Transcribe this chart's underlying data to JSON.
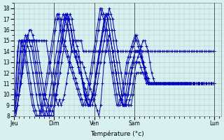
{
  "title": "",
  "xlabel": "Température (°c)",
  "ylabel": "",
  "background_color": "#d8f0f0",
  "grid_color": "#b0d0d0",
  "line_color": "#0000cc",
  "ylim": [
    8,
    18.5
  ],
  "yticks": [
    8,
    9,
    10,
    11,
    12,
    13,
    14,
    15,
    16,
    17,
    18
  ],
  "day_labels": [
    "Jeu",
    "Dim",
    "Ven",
    "Sam",
    "Lun"
  ],
  "day_positions": [
    0,
    24,
    48,
    72,
    120
  ],
  "series": [
    [
      8,
      8,
      9,
      10,
      11,
      12,
      13,
      14,
      15,
      16,
      16,
      15.5,
      15,
      15,
      15,
      15,
      15,
      15,
      15,
      15,
      14,
      13,
      12,
      11,
      10,
      9.5,
      9,
      9.5,
      9,
      9.5,
      10,
      11,
      12,
      13,
      14,
      15,
      15,
      15,
      15,
      15,
      15,
      14,
      14,
      14,
      14,
      14,
      14,
      14,
      14,
      14,
      14,
      14,
      14,
      14,
      14,
      14,
      14,
      14,
      14,
      14,
      14,
      14,
      14,
      14,
      14,
      14,
      14,
      14,
      14,
      14,
      14,
      14,
      14,
      14,
      14,
      14,
      14,
      14,
      14,
      14,
      14,
      14,
      14,
      14,
      14,
      14,
      14,
      14,
      14,
      14,
      14,
      14,
      14,
      14,
      14,
      14,
      14,
      14,
      14,
      14,
      14,
      14,
      14,
      14,
      14,
      14,
      14,
      14,
      14,
      14,
      14,
      14,
      14,
      14,
      14,
      14,
      14,
      14,
      14,
      14
    ],
    [
      8,
      8,
      9,
      10,
      11,
      13,
      14,
      15,
      15,
      15,
      15,
      15,
      15,
      15,
      14,
      13,
      12,
      11,
      10,
      9.5,
      9,
      8,
      8,
      8,
      9,
      10,
      11,
      12,
      13,
      14,
      15,
      16,
      17,
      17.5,
      17,
      16,
      15,
      14.5,
      14,
      13,
      13,
      12.5,
      12,
      11.5,
      11,
      10.5,
      10,
      9.5,
      9,
      8.5,
      8,
      9,
      11,
      13,
      14,
      15,
      15.5,
      15,
      14,
      13,
      12,
      11,
      10,
      9.5,
      9,
      9,
      9,
      9,
      9,
      9,
      10,
      11,
      12,
      12,
      12,
      12,
      12,
      11.5,
      11,
      11,
      11,
      11,
      11,
      11,
      11,
      11,
      11,
      11,
      11,
      11,
      11,
      11,
      11,
      11,
      11,
      11,
      11,
      11,
      11,
      11,
      11,
      11,
      11,
      11,
      11,
      11,
      11,
      11,
      11,
      11,
      11,
      11,
      11,
      11,
      11,
      11,
      11,
      11,
      11
    ],
    [
      8,
      8,
      9,
      10,
      11,
      12,
      14,
      15,
      15.5,
      15,
      15,
      15,
      15,
      14,
      13,
      12,
      11,
      10,
      9.5,
      9,
      8,
      8,
      8,
      8.5,
      9,
      10,
      11,
      13,
      14,
      15,
      16,
      17,
      17.5,
      17,
      16,
      15,
      14,
      14,
      13,
      12,
      12,
      11,
      10,
      9.5,
      9,
      9,
      9.5,
      10,
      11,
      12,
      13,
      14,
      15,
      16,
      17,
      17.5,
      17,
      16,
      15,
      14,
      13,
      12,
      11,
      10,
      9.5,
      9,
      9,
      9,
      10,
      11,
      12,
      12.5,
      13,
      13,
      13,
      13,
      12.5,
      12,
      12,
      11.5,
      11,
      11,
      11,
      11,
      11,
      11,
      11,
      11,
      11,
      11,
      11,
      11,
      11,
      11,
      11,
      11,
      11,
      11,
      11,
      11,
      11,
      11,
      11,
      11,
      11,
      11,
      11,
      11,
      11,
      11,
      11,
      11,
      11,
      11,
      11,
      11,
      11,
      11,
      11,
      11,
      11
    ],
    [
      8,
      8.5,
      9,
      10,
      12,
      14,
      15,
      15.5,
      15,
      15,
      15,
      15,
      14,
      13,
      12,
      11,
      10,
      9,
      8.5,
      8,
      8,
      8,
      8.5,
      9,
      10,
      11,
      12,
      13,
      14,
      15,
      16,
      17,
      17.5,
      17,
      16.5,
      16,
      15,
      14,
      14,
      13.5,
      13,
      12,
      11,
      10,
      9.5,
      9,
      9,
      9.5,
      10,
      11,
      12,
      13,
      14,
      15,
      16,
      17,
      17.5,
      17,
      16,
      15,
      14,
      13,
      12,
      11,
      10,
      9.5,
      9,
      9,
      10,
      11,
      12,
      12.5,
      13,
      13.5,
      14,
      14,
      14,
      13.5,
      13,
      12.5,
      12,
      11.5,
      11,
      11,
      11,
      11,
      11,
      11,
      11,
      11,
      11,
      11,
      11,
      11,
      11,
      11,
      11,
      11,
      11,
      11,
      11,
      11,
      11,
      11,
      11,
      11,
      11,
      11,
      11,
      11,
      11,
      11,
      11,
      11,
      11,
      11,
      11,
      11,
      11,
      11,
      11,
      11,
      11
    ],
    [
      8,
      9,
      10,
      12,
      14,
      15,
      15,
      15,
      15,
      15,
      14.5,
      14,
      13,
      12,
      11,
      10,
      9,
      8.5,
      8,
      8,
      8,
      8.5,
      9,
      10,
      11,
      12,
      13,
      14,
      15,
      16,
      17,
      17.5,
      17,
      16,
      15,
      14,
      14,
      13.5,
      13,
      12.5,
      12,
      11.5,
      11,
      10,
      9.5,
      9,
      9,
      9.5,
      10,
      11,
      12,
      13,
      14,
      15,
      16,
      17,
      17.5,
      17.5,
      17,
      16,
      15,
      14,
      13,
      12,
      11,
      10,
      9,
      9,
      9.5,
      10,
      11,
      12,
      13,
      14,
      14,
      14,
      14,
      13.5,
      13,
      12.5,
      12,
      11.5,
      11,
      11,
      11,
      11,
      11,
      11,
      11,
      11,
      11,
      11,
      11,
      11,
      11,
      11,
      11,
      11,
      11,
      11,
      11,
      11,
      11,
      11,
      11,
      11,
      11,
      11,
      11,
      11,
      11,
      11,
      11,
      11,
      11,
      11,
      11,
      11,
      11,
      11,
      11,
      11
    ],
    [
      8,
      9,
      11,
      13,
      15,
      15,
      15,
      15,
      14.5,
      14,
      13,
      12,
      11,
      10,
      9,
      8.5,
      8,
      8,
      8,
      8.5,
      9,
      10,
      11,
      12,
      13,
      14,
      15,
      16,
      17,
      17.5,
      17,
      16.5,
      16,
      15,
      14,
      14,
      13.5,
      13,
      12.5,
      12,
      11.5,
      11,
      10.5,
      10,
      9.5,
      9,
      9,
      9.5,
      10,
      11,
      12,
      13,
      14,
      15,
      16,
      17,
      18,
      17.5,
      17,
      16,
      15,
      14,
      13,
      12,
      11,
      10,
      9,
      9,
      9.5,
      10,
      11,
      12,
      13,
      13.5,
      14,
      14.5,
      15,
      15,
      14.5,
      14,
      13,
      12,
      11.5,
      11,
      11,
      11,
      11,
      11,
      11,
      11,
      11,
      11,
      11,
      11,
      11,
      11,
      11,
      11,
      11,
      11,
      11,
      11,
      11,
      11,
      11,
      11,
      11,
      11,
      11,
      11,
      11,
      11,
      11,
      11,
      11,
      11,
      11,
      11,
      11
    ],
    [
      8,
      10,
      13,
      15,
      15,
      15,
      14.5,
      14,
      13,
      12,
      11,
      10,
      9,
      8.5,
      8,
      8,
      8,
      8.5,
      9,
      10,
      11,
      12,
      13,
      14,
      15,
      16,
      17,
      17.5,
      17,
      16,
      15,
      14.5,
      14,
      13.5,
      13,
      12.5,
      12,
      11.5,
      11,
      10.5,
      10,
      9.5,
      9,
      9,
      9.5,
      10,
      11,
      12,
      13,
      14,
      15,
      16,
      17,
      18,
      17.5,
      17,
      16,
      15,
      14,
      13,
      12,
      11,
      10,
      9,
      9,
      9.5,
      10,
      11,
      12,
      13,
      13.5,
      14,
      14.5,
      15,
      15.5,
      15,
      14.5,
      14,
      13,
      12,
      11.5,
      11,
      11,
      11,
      11,
      11,
      11,
      11,
      11,
      11,
      11,
      11,
      11,
      11,
      11,
      11,
      11,
      11,
      11,
      11,
      11,
      11,
      11,
      11,
      11,
      11,
      11,
      11,
      11,
      11,
      11,
      11,
      11,
      11,
      11,
      11,
      11,
      11,
      11,
      11,
      11,
      11
    ],
    [
      8,
      11,
      14,
      15,
      15,
      14.5,
      14,
      13,
      12,
      11,
      10,
      9,
      8.5,
      8,
      8,
      8,
      8.5,
      9,
      10,
      11,
      12,
      13,
      14,
      15,
      16,
      17,
      17.5,
      17,
      16,
      15,
      14.5,
      14,
      13.5,
      13,
      12.5,
      12,
      11.5,
      11,
      10.5,
      10,
      9.5,
      9,
      9,
      9.5,
      10,
      11,
      12,
      13,
      14,
      15,
      16,
      17,
      18,
      17.5,
      17,
      16,
      15,
      14,
      13,
      12,
      11,
      10,
      9,
      9,
      9.5,
      10,
      11,
      12,
      13,
      13.5,
      14,
      14.5,
      15,
      15.5,
      15,
      14.5,
      14,
      13.5,
      13,
      12,
      11.5,
      11,
      11,
      11,
      11,
      11,
      11,
      11,
      11,
      11,
      11,
      11,
      11,
      11,
      11,
      11,
      11,
      11,
      11,
      11,
      11,
      11,
      11,
      11,
      11,
      11,
      11,
      11,
      11,
      11,
      11,
      11,
      11,
      11,
      11,
      11,
      11,
      11,
      11,
      11,
      11,
      11
    ]
  ]
}
